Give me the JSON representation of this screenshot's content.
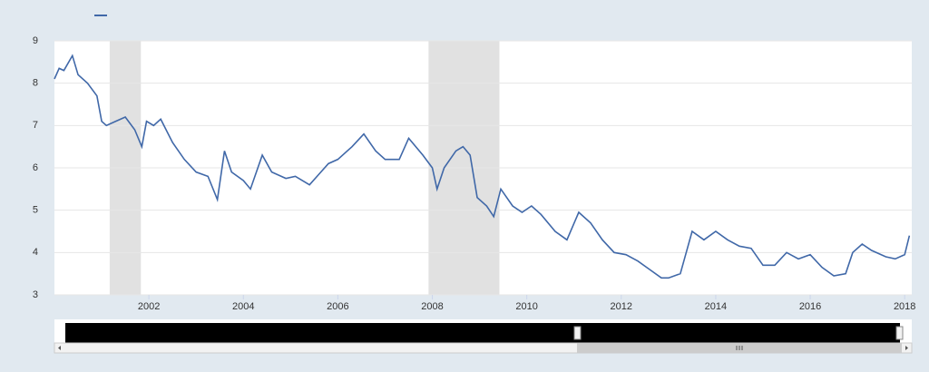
{
  "chart_data": {
    "type": "line",
    "series": [
      {
        "color": "#4068a8",
        "x": [
          2000.0,
          2000.1,
          2000.2,
          2000.38,
          2000.5,
          2000.7,
          2000.9,
          2001.0,
          2001.1,
          2001.3,
          2001.5,
          2001.7,
          2001.85,
          2001.95,
          2002.1,
          2002.25,
          2002.5,
          2002.75,
          2003.0,
          2003.25,
          2003.45,
          2003.6,
          2003.75,
          2004.0,
          2004.15,
          2004.4,
          2004.6,
          2004.9,
          2005.1,
          2005.4,
          2005.6,
          2005.8,
          2006.0,
          2006.3,
          2006.55,
          2006.8,
          2007.0,
          2007.3,
          2007.5,
          2007.8,
          2008.0,
          2008.1,
          2008.25,
          2008.5,
          2008.65,
          2008.8,
          2008.95,
          2009.15,
          2009.3,
          2009.45,
          2009.7,
          2009.9,
          2010.1,
          2010.3,
          2010.6,
          2010.85,
          2011.1,
          2011.35,
          2011.6,
          2011.85,
          2012.1,
          2012.35,
          2012.6,
          2012.85,
          2013.0,
          2013.25,
          2013.5,
          2013.75,
          2014.0,
          2014.25,
          2014.5,
          2014.75,
          2015.0,
          2015.25,
          2015.5,
          2015.75,
          2016.0,
          2016.25,
          2016.5,
          2016.75,
          2016.9,
          2017.1,
          2017.3,
          2017.6,
          2017.8,
          2018.0,
          2018.1
        ],
        "values": [
          8.1,
          8.35,
          8.3,
          8.65,
          8.2,
          8.0,
          7.7,
          7.1,
          7.0,
          7.1,
          7.2,
          6.9,
          6.5,
          7.1,
          7.0,
          7.15,
          6.6,
          6.2,
          5.9,
          5.8,
          5.25,
          6.4,
          5.9,
          5.7,
          5.5,
          6.3,
          5.9,
          5.75,
          5.8,
          5.6,
          5.85,
          6.1,
          6.2,
          6.5,
          6.8,
          6.4,
          6.2,
          6.2,
          6.7,
          6.3,
          6.0,
          5.5,
          6.0,
          6.4,
          6.5,
          6.3,
          5.3,
          5.1,
          4.85,
          5.5,
          5.1,
          4.95,
          5.1,
          4.9,
          4.5,
          4.3,
          4.95,
          4.7,
          4.3,
          4.0,
          3.95,
          3.8,
          3.6,
          3.4,
          3.4,
          3.5,
          4.5,
          4.3,
          4.5,
          4.3,
          4.15,
          4.1,
          3.7,
          3.7,
          4.0,
          3.85,
          3.95,
          3.65,
          3.45,
          3.5,
          4.0,
          4.2,
          4.05,
          3.9,
          3.85,
          3.95,
          4.4
        ]
      }
    ],
    "recessions": [
      [
        2001.17,
        2001.83
      ],
      [
        2007.92,
        2009.42
      ]
    ],
    "xlim": [
      2000,
      2018.15
    ],
    "xticks": [
      2002,
      2004,
      2006,
      2008,
      2010,
      2012,
      2014,
      2016,
      2018
    ],
    "ylim": [
      3,
      9
    ],
    "yticks": [
      3,
      4,
      5,
      6,
      7,
      8,
      9
    ],
    "grid": true
  }
}
